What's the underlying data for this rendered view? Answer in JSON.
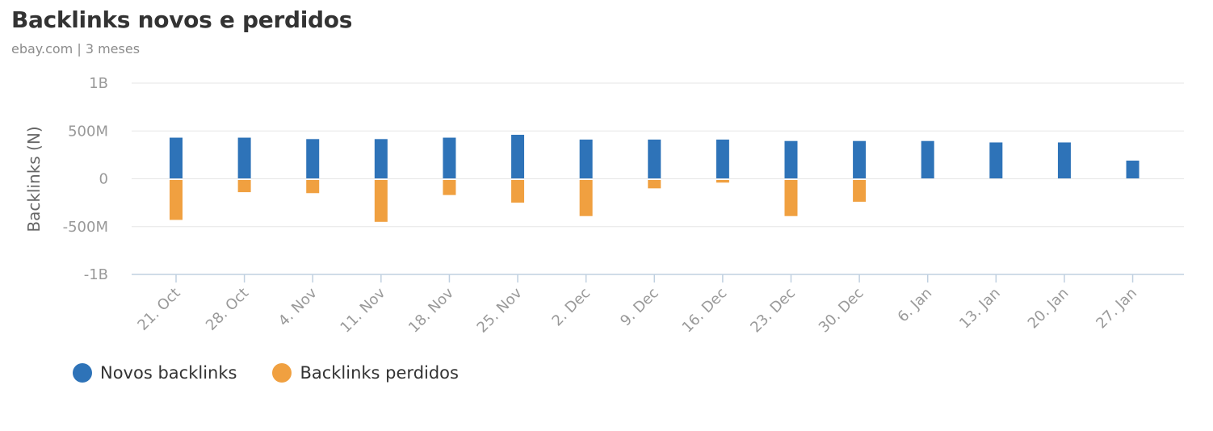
{
  "header": {
    "title": "Backlinks novos e perdidos",
    "subtitle": "ebay.com | 3 meses"
  },
  "colors": {
    "new": "#2e73b8",
    "lost": "#f0a040",
    "grid": "#e6e6e6",
    "axis": "#c0d0e0"
  },
  "chart_data": {
    "type": "bar",
    "title": "Backlinks novos e perdidos",
    "subtitle": "ebay.com | 3 meses",
    "xlabel": "",
    "ylabel": "Backlinks (N)",
    "ylim": [
      -1000000000,
      1000000000
    ],
    "yticks": [
      {
        "value": 1000000000,
        "label": "1B"
      },
      {
        "value": 500000000,
        "label": "500M"
      },
      {
        "value": 0,
        "label": "0"
      },
      {
        "value": -500000000,
        "label": "-500M"
      },
      {
        "value": -1000000000,
        "label": "-1B"
      }
    ],
    "grid": true,
    "legend_position": "bottom-left",
    "categories": [
      "21. Oct",
      "28. Oct",
      "4. Nov",
      "11. Nov",
      "18. Nov",
      "25. Nov",
      "2. Dec",
      "9. Dec",
      "16. Dec",
      "23. Dec",
      "30. Dec",
      "6. Jan",
      "13. Jan",
      "20. Jan",
      "27. Jan"
    ],
    "series": [
      {
        "name": "Novos backlinks",
        "values": [
          430000000,
          430000000,
          415000000,
          415000000,
          430000000,
          460000000,
          410000000,
          410000000,
          410000000,
          395000000,
          395000000,
          395000000,
          380000000,
          380000000,
          190000000
        ]
      },
      {
        "name": "Backlinks perdidos",
        "values": [
          -430000000,
          -140000000,
          -150000000,
          -450000000,
          -170000000,
          -250000000,
          -390000000,
          -100000000,
          -40000000,
          -390000000,
          -240000000,
          0,
          0,
          0,
          0
        ]
      }
    ]
  }
}
